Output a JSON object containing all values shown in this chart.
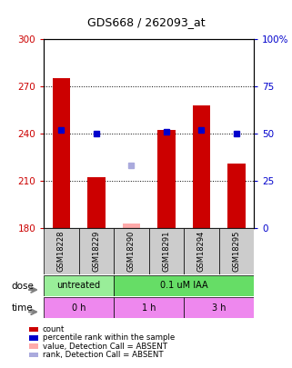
{
  "title": "GDS668 / 262093_at",
  "samples": [
    "GSM18228",
    "GSM18229",
    "GSM18290",
    "GSM18291",
    "GSM18294",
    "GSM18295"
  ],
  "bar_values": [
    275,
    212,
    183,
    242,
    258,
    221
  ],
  "bar_colors": [
    "#cc0000",
    "#cc0000",
    "#ffaaaa",
    "#cc0000",
    "#cc0000",
    "#cc0000"
  ],
  "percentile_values": [
    52,
    50,
    null,
    51,
    52,
    50
  ],
  "rank_absent_values": [
    null,
    null,
    33,
    null,
    null,
    null
  ],
  "ylim_left": [
    180,
    300
  ],
  "ylim_right": [
    0,
    100
  ],
  "yticks_left": [
    180,
    210,
    240,
    270,
    300
  ],
  "yticks_right": [
    0,
    25,
    50,
    75,
    100
  ],
  "ytick_labels_left": [
    "180",
    "210",
    "240",
    "270",
    "300"
  ],
  "ytick_labels_right": [
    "0",
    "25",
    "50",
    "75",
    "100%"
  ],
  "dose_groups": [
    {
      "label": "untreated",
      "start": 0,
      "end": 2,
      "color": "#99ee99"
    },
    {
      "label": "0.1 uM IAA",
      "start": 2,
      "end": 6,
      "color": "#66dd66"
    }
  ],
  "time_groups": [
    {
      "label": "0 h",
      "start": 0,
      "end": 2,
      "color": "#ee88ee"
    },
    {
      "label": "1 h",
      "start": 2,
      "end": 4,
      "color": "#ee88ee"
    },
    {
      "label": "3 h",
      "start": 4,
      "end": 6,
      "color": "#ee88ee"
    }
  ],
  "legend_items": [
    {
      "color": "#cc0000",
      "label": "count"
    },
    {
      "color": "#0000cc",
      "label": "percentile rank within the sample"
    },
    {
      "color": "#ffaaaa",
      "label": "value, Detection Call = ABSENT"
    },
    {
      "color": "#aaaadd",
      "label": "rank, Detection Call = ABSENT"
    }
  ],
  "left_tick_color": "#cc0000",
  "right_tick_color": "#0000cc"
}
